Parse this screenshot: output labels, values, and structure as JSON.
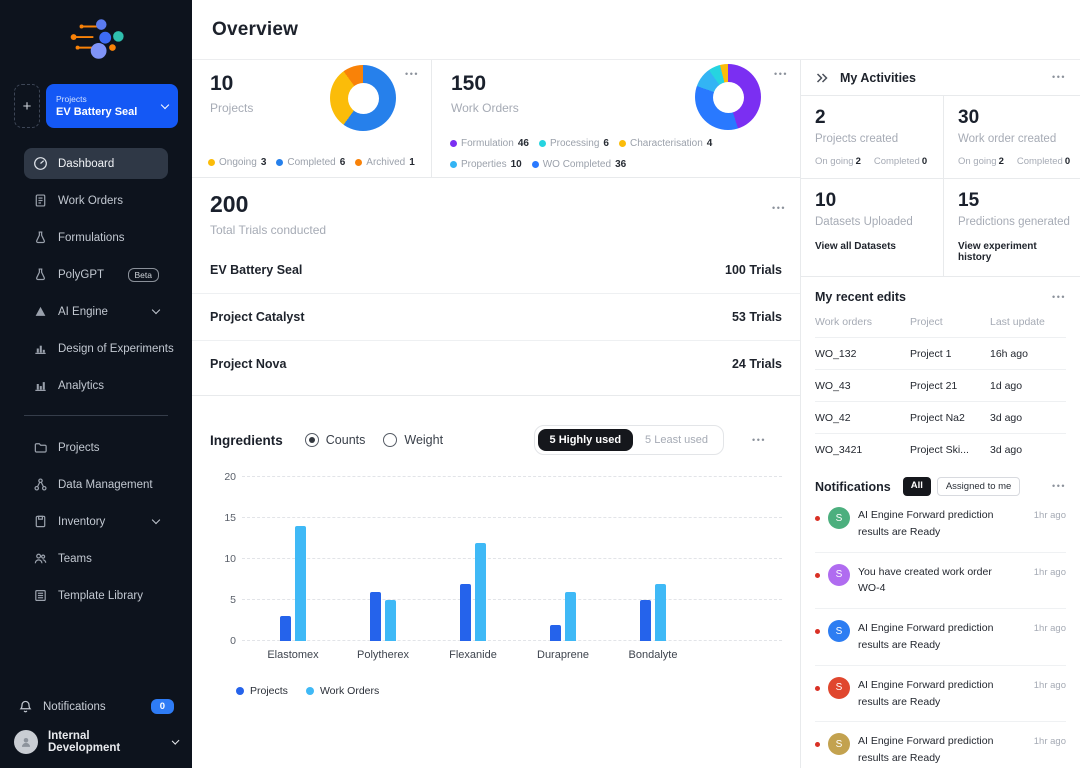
{
  "sidebar": {
    "project_selector": {
      "label": "Projects",
      "value": "EV Battery Seal"
    },
    "add_button": "+",
    "nav_primary": [
      {
        "label": "Dashboard"
      },
      {
        "label": "Work Orders"
      },
      {
        "label": "Formulations"
      },
      {
        "label": "PolyGPT",
        "badge": "Beta"
      },
      {
        "label": "AI Engine"
      },
      {
        "label": "Design of Experiments"
      },
      {
        "label": "Analytics"
      }
    ],
    "nav_secondary": [
      {
        "label": "Projects"
      },
      {
        "label": "Data Management"
      },
      {
        "label": "Inventory"
      },
      {
        "label": "Teams"
      },
      {
        "label": "Template Library"
      }
    ],
    "notifications_label": "Notifications",
    "notifications_badge": "0",
    "user_name": "Internal Development"
  },
  "header": {
    "title": "Overview"
  },
  "overview_cards": {
    "projects": {
      "value": "10",
      "label": "Projects",
      "legend": [
        {
          "label": "Ongoing",
          "count": "3",
          "color": "#fbbc09"
        },
        {
          "label": "Completed",
          "count": "6",
          "color": "#2680eb"
        },
        {
          "label": "Archived",
          "count": "1",
          "color": "#f98208"
        }
      ],
      "donut": [
        {
          "color": "#2680eb",
          "value": 6
        },
        {
          "color": "#fbbc09",
          "value": 3
        },
        {
          "color": "#f98208",
          "value": 1
        }
      ]
    },
    "work_orders": {
      "value": "150",
      "label": "Work Orders",
      "legend": [
        {
          "label": "Formulation",
          "count": "46",
          "color": "#7b2ff2"
        },
        {
          "label": "Processing",
          "count": "6",
          "color": "#26d4e0"
        },
        {
          "label": "Characterisation",
          "count": "4",
          "color": "#fbbc09"
        },
        {
          "label": "Properties",
          "count": "10",
          "color": "#33b4f4"
        },
        {
          "label": "WO Completed",
          "count": "36",
          "color": "#2979ff"
        }
      ],
      "donut": [
        {
          "color": "#7b2ff2",
          "value": 46
        },
        {
          "color": "#2979ff",
          "value": 36
        },
        {
          "color": "#33b4f4",
          "value": 10
        },
        {
          "color": "#26d4e0",
          "value": 6
        },
        {
          "color": "#fbbc09",
          "value": 4
        }
      ]
    },
    "trials": {
      "value": "200",
      "label": "Total Trials conducted",
      "rows": [
        {
          "name": "EV Battery Seal",
          "trials": "100 Trials"
        },
        {
          "name": "Project Catalyst",
          "trials": "53 Trials"
        },
        {
          "name": "Project Nova",
          "trials": "24 Trials"
        }
      ]
    }
  },
  "ingredients": {
    "title": "Ingredients",
    "radio_counts": "Counts",
    "radio_weight": "Weight",
    "toggle_high": "5 Highly used",
    "toggle_low": "5 Least used"
  },
  "chart_data": {
    "type": "bar",
    "title": "Ingredients",
    "categories": [
      "Elastomex",
      "Polytherex",
      "Flexanide",
      "Duraprene",
      "Bondalyte"
    ],
    "series": [
      {
        "name": "Projects",
        "color": "#2563eb",
        "values": [
          3,
          6,
          7,
          2,
          5
        ]
      },
      {
        "name": "Work Orders",
        "color": "#3fb9f6",
        "values": [
          14,
          5,
          12,
          6,
          7
        ]
      }
    ],
    "xlabel": "",
    "ylabel": "",
    "ylim": [
      0,
      20
    ],
    "yticks": [
      0,
      5,
      10,
      15,
      20
    ],
    "grid": "horizontal-dashed",
    "legend_position": "bottom-left"
  },
  "activities": {
    "title": "My Activities",
    "stats": [
      {
        "value": "2",
        "label": "Projects created",
        "ongoing_label": "On going",
        "ongoing": "2",
        "completed_label": "Completed",
        "completed": "0"
      },
      {
        "value": "30",
        "label": "Work order created",
        "ongoing_label": "On going",
        "ongoing": "2",
        "completed_label": "Completed",
        "completed": "0"
      },
      {
        "value": "10",
        "label": "Datasets Uploaded",
        "link": "View all Datasets"
      },
      {
        "value": "15",
        "label": "Predictions generated",
        "link": "View experiment history"
      }
    ]
  },
  "recent_edits": {
    "title": "My recent edits",
    "columns": [
      "Work orders",
      "Project",
      "Last update"
    ],
    "rows": [
      [
        "WO_132",
        "Project 1",
        "16h ago"
      ],
      [
        "WO_43",
        "Project 21",
        "1d ago"
      ],
      [
        "WO_42",
        "Project Na2",
        "3d ago"
      ],
      [
        "WO_3421",
        "Project Ski...",
        "3d ago"
      ]
    ]
  },
  "notifications_panel": {
    "title": "Notifications",
    "filters": [
      {
        "label": "All",
        "active": true
      },
      {
        "label": "Assigned to me",
        "active": false
      }
    ],
    "items": [
      {
        "initial": "S",
        "color": "#4caf7e",
        "text": "AI Engine Forward prediction results are Ready",
        "time": "1hr ago"
      },
      {
        "initial": "S",
        "color": "#b06cf0",
        "text": "You have created work order WO-4",
        "time": "1hr ago"
      },
      {
        "initial": "S",
        "color": "#2d7df2",
        "text": "AI Engine Forward prediction results are Ready",
        "time": "1hr ago"
      },
      {
        "initial": "S",
        "color": "#e0472e",
        "text": "AI Engine Forward prediction results are Ready",
        "time": "1hr ago"
      },
      {
        "initial": "S",
        "color": "#c3a24f",
        "text": "AI Engine Forward prediction results are Ready",
        "time": "1hr ago"
      }
    ]
  }
}
